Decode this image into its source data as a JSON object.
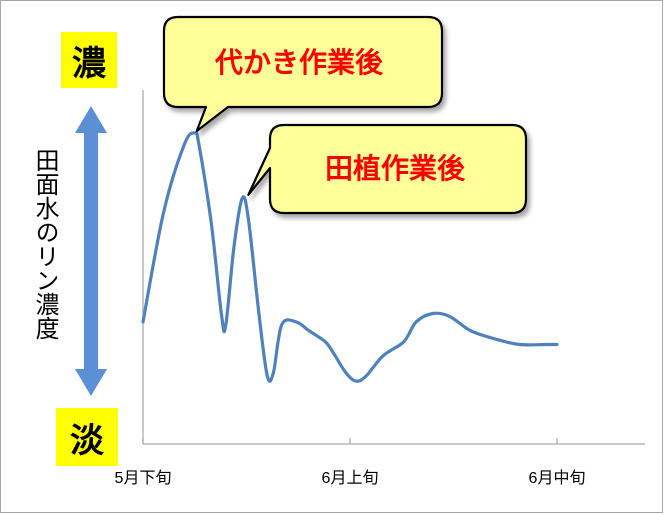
{
  "chart_data": {
    "type": "line",
    "ylabel": "田面水のリン濃度",
    "y_high_label": "濃",
    "y_low_label": "淡",
    "x_ticks": [
      "5月下旬",
      "6月上旬",
      "6月中旬"
    ],
    "ylim": [
      0,
      100
    ],
    "line_color": "#4f81bd",
    "series": [
      {
        "values": [
          [
            0.0,
            33
          ],
          [
            0.1,
            72
          ],
          [
            0.2,
            96
          ],
          [
            0.25,
            100
          ],
          [
            0.27,
            96
          ],
          [
            0.33,
            68
          ],
          [
            0.38,
            35
          ],
          [
            0.4,
            32
          ],
          [
            0.44,
            60
          ],
          [
            0.48,
            77
          ],
          [
            0.51,
            69
          ],
          [
            0.56,
            36
          ],
          [
            0.6,
            14
          ],
          [
            0.63,
            15
          ],
          [
            0.67,
            32
          ],
          [
            0.74,
            33
          ],
          [
            0.8,
            30
          ],
          [
            0.88,
            26
          ],
          [
            0.92,
            22
          ],
          [
            0.98,
            15
          ],
          [
            1.03,
            12
          ],
          [
            1.08,
            14
          ],
          [
            1.16,
            21
          ],
          [
            1.26,
            26
          ],
          [
            1.32,
            33
          ],
          [
            1.4,
            36
          ],
          [
            1.48,
            35
          ],
          [
            1.58,
            30
          ],
          [
            1.7,
            27
          ],
          [
            1.82,
            25
          ],
          [
            1.95,
            25
          ],
          [
            2.0,
            25
          ]
        ]
      }
    ],
    "annotations": [
      {
        "text": "代かき作業後",
        "x": 0.25,
        "y": 100
      },
      {
        "text": "田植作業後",
        "x": 0.48,
        "y": 77
      }
    ]
  },
  "colors": {
    "line": "#4f81bd",
    "arrow": "#5b8fd6",
    "label_box": "#ffff00",
    "callout_fill": "#ffff99",
    "callout_text": "#ff0000",
    "axis": "#a6a6a6"
  }
}
